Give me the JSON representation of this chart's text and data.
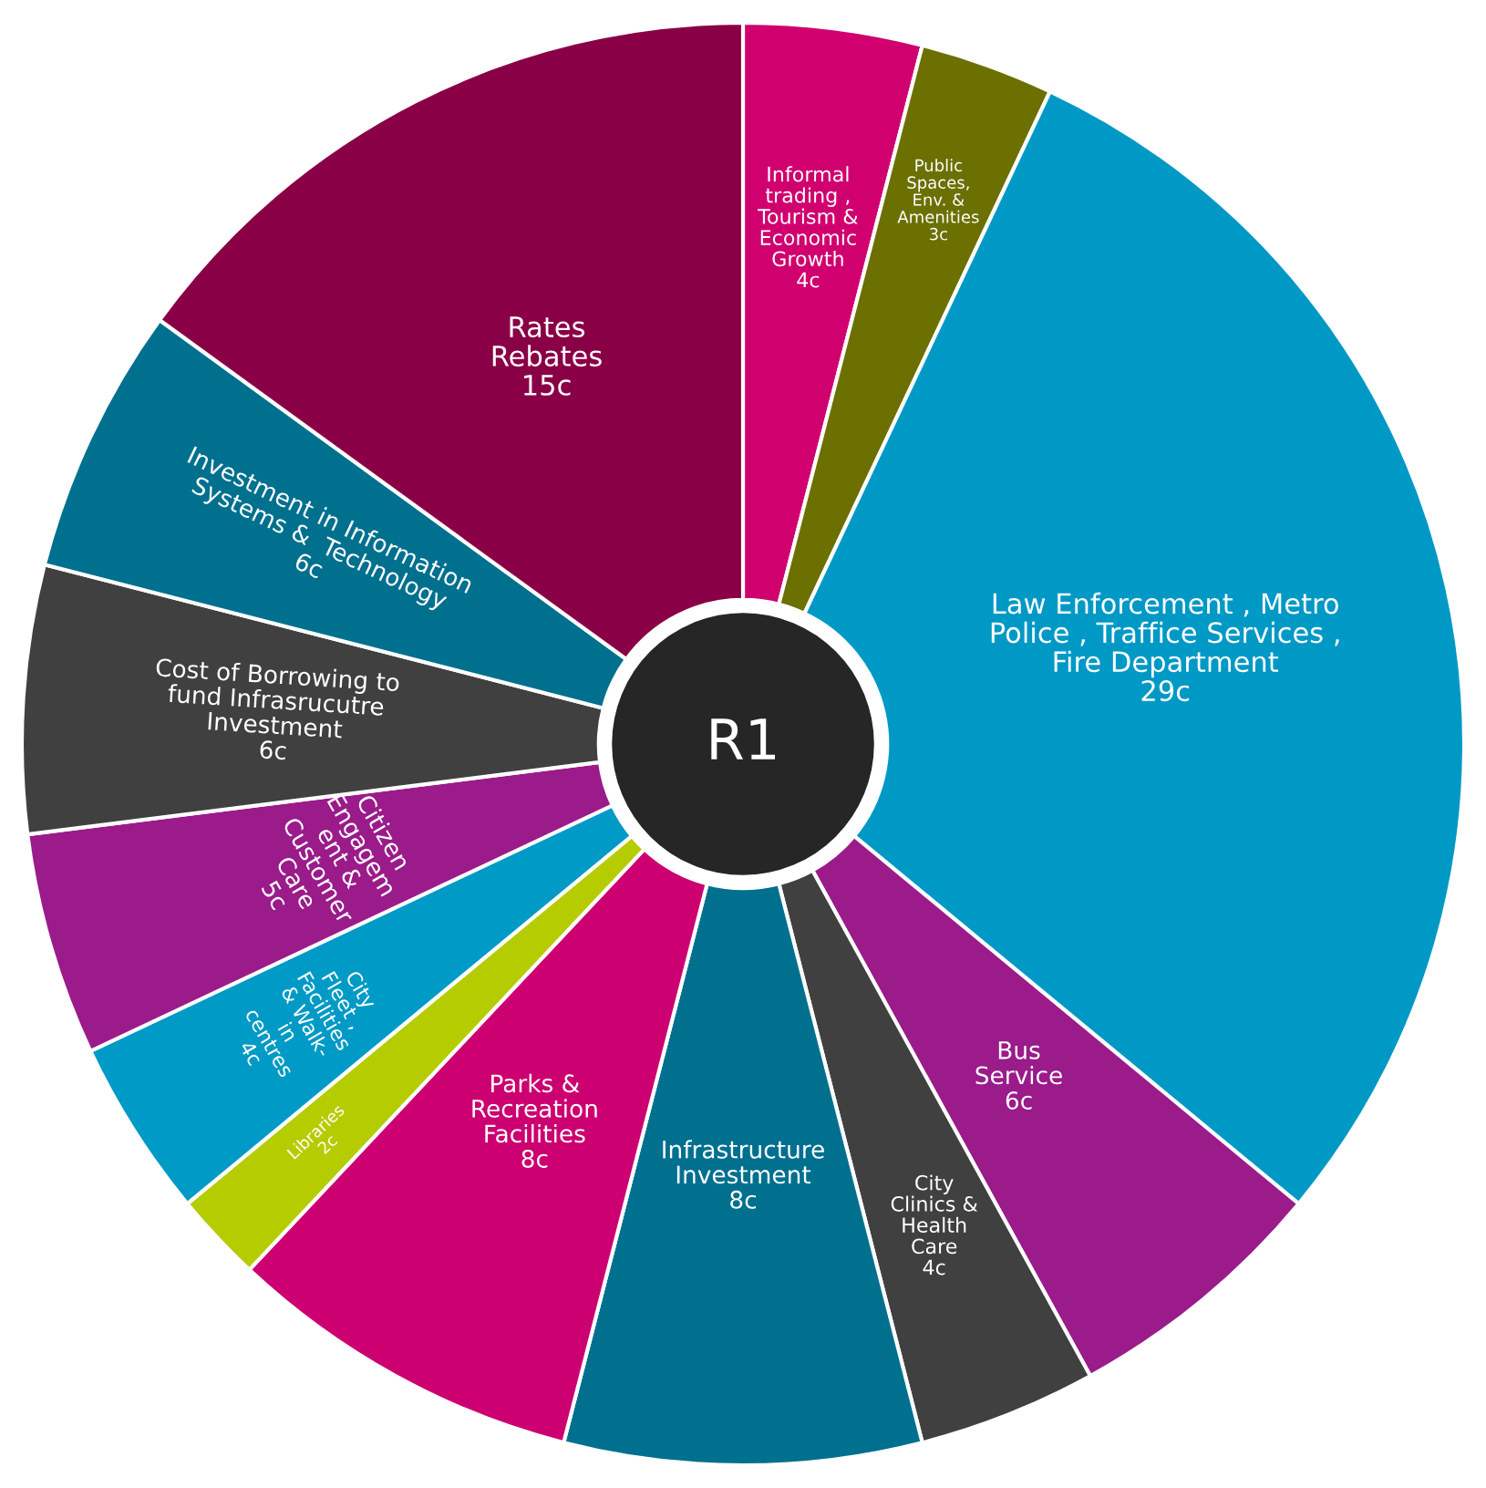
{
  "chart_data": {
    "type": "donut",
    "categories": [
      "Informal\ntrading ,\nTourism &\nEconomic\nGrowth",
      "Public\nSpaces,\nEnv. &\nAmenities",
      "Law Enforcement , Metro\nPolice , Traffice Services ,\nFire Department",
      "Bus\nService",
      "City\nClinics &\nHealth\nCare",
      "Infrastructure\nInvestment",
      "Parks &\nRecreation\nFacilities",
      "Libraries",
      "City\nFleet ,\nFacilities\n& Walk-\nin\ncentres",
      "Citizen\nEngagem\nent &\nCustomer\nCare",
      "Cost of Borrowing to\nfund Infrasrucutre\nInvestment",
      "Investment in Information\nSystems &  Technology",
      "Rates\nRebates"
    ],
    "values": [
      4,
      3,
      29,
      6,
      4,
      8,
      8,
      2,
      4,
      5,
      6,
      6,
      15
    ],
    "value_labels": [
      "4c",
      "3c",
      "29c",
      "6c",
      "4c",
      "8c",
      "8c",
      "2c",
      "4c",
      "5c",
      "6c",
      "6c",
      "15c"
    ],
    "colors": [
      "#d1006f",
      "#6b7000",
      "#0099c6",
      "#9b1b8a",
      "#404040",
      "#00708f",
      "#cc0070",
      "#b5cc00",
      "#009ac6",
      "#9b1b8a",
      "#404040",
      "#00708f",
      "#8a0046"
    ],
    "annotations": [
      "R1"
    ],
    "legend": false
  }
}
